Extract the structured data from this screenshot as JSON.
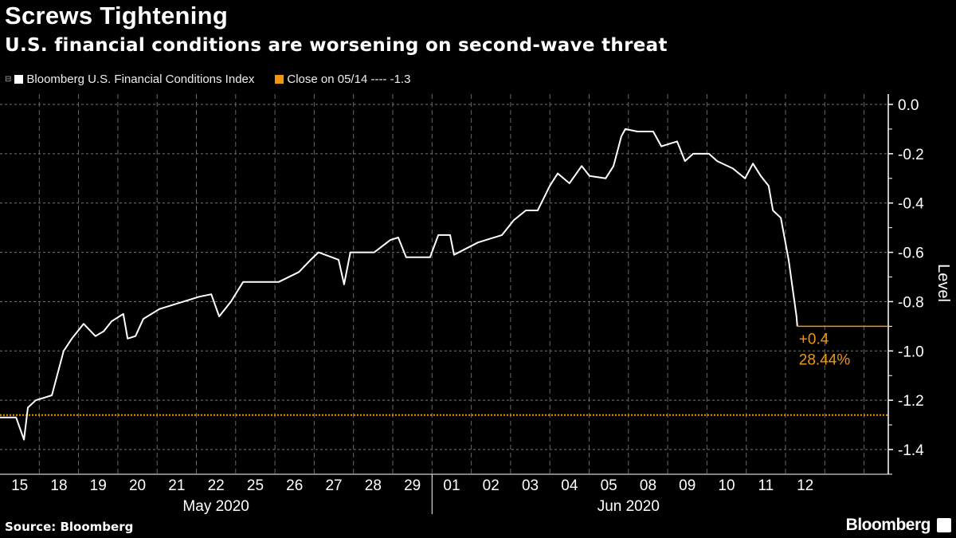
{
  "header": {
    "title": "Screws Tightening",
    "subtitle": "U.S. financial conditions are worsening on second-wave threat"
  },
  "legend": [
    {
      "label": "Bloomberg U.S. Financial Conditions Index",
      "color": "#ffffff"
    },
    {
      "label": "Close on 05/14 ---- -1.3",
      "color": "#f0960f"
    }
  ],
  "footer": {
    "source": "Source: Bloomberg",
    "brand": "Bloomberg"
  },
  "chart_data": {
    "type": "line",
    "title": "Screws Tightening",
    "subtitle": "U.S. financial conditions are worsening on second-wave threat",
    "ylabel": "Level",
    "xlabel": "",
    "ylim": [
      -1.5,
      0.05
    ],
    "xlim": [
      0,
      22.6
    ],
    "yticks": [
      0.0,
      -0.2,
      -0.4,
      -0.6,
      -0.8,
      -1.0,
      -1.2,
      -1.4
    ],
    "ytick_labels": [
      "0.0",
      "-0.2",
      "-0.4",
      "-0.6",
      "-0.8",
      "-1.0",
      "-1.2",
      "-1.4"
    ],
    "xtick_labels": [
      "15",
      "18",
      "19",
      "20",
      "21",
      "22",
      "25",
      "26",
      "27",
      "28",
      "29",
      "01",
      "02",
      "03",
      "04",
      "05",
      "08",
      "09",
      "10",
      "11",
      "12"
    ],
    "month_labels": [
      {
        "label": "May 2020",
        "center_day": 5.5
      },
      {
        "label": "Jun 2020",
        "center_day": 16
      }
    ],
    "month_divider_day": 11,
    "grid": true,
    "legend_position": "top-left",
    "series": [
      {
        "name": "Bloomberg U.S. Financial Conditions Index",
        "color": "#ffffff",
        "x": [
          0,
          0.41,
          0.61,
          0.71,
          0.91,
          1.32,
          1.62,
          1.83,
          2.13,
          2.43,
          2.64,
          2.84,
          3.14,
          3.25,
          3.45,
          3.65,
          4.06,
          4.67,
          5.07,
          5.38,
          5.58,
          5.88,
          6.19,
          7.1,
          7.61,
          7.91,
          8.11,
          8.62,
          8.76,
          8.92,
          9.53,
          9.94,
          10.14,
          10.34,
          10.95,
          11.16,
          11.46,
          11.56,
          12.17,
          12.78,
          13.08,
          13.39,
          13.69,
          14.0,
          14.2,
          14.5,
          14.81,
          15.01,
          15.42,
          15.62,
          15.82,
          15.92,
          16.23,
          16.63,
          16.84,
          17.24,
          17.44,
          17.65,
          18.05,
          18.26,
          18.66,
          18.97,
          19.17,
          19.37,
          19.57,
          19.68,
          19.88,
          20.08,
          20.28,
          20.3
        ],
        "y": [
          -1.27,
          -1.27,
          -1.36,
          -1.23,
          -1.2,
          -1.18,
          -1.0,
          -0.95,
          -0.89,
          -0.94,
          -0.92,
          -0.88,
          -0.85,
          -0.95,
          -0.94,
          -0.87,
          -0.83,
          -0.8,
          -0.78,
          -0.77,
          -0.86,
          -0.8,
          -0.72,
          -0.72,
          -0.68,
          -0.63,
          -0.6,
          -0.63,
          -0.73,
          -0.6,
          -0.6,
          -0.55,
          -0.54,
          -0.62,
          -0.62,
          -0.53,
          -0.53,
          -0.61,
          -0.56,
          -0.53,
          -0.47,
          -0.43,
          -0.43,
          -0.33,
          -0.28,
          -0.32,
          -0.25,
          -0.29,
          -0.3,
          -0.25,
          -0.13,
          -0.1,
          -0.11,
          -0.11,
          -0.17,
          -0.15,
          -0.23,
          -0.2,
          -0.2,
          -0.23,
          -0.26,
          -0.3,
          -0.24,
          -0.29,
          -0.33,
          -0.43,
          -0.46,
          -0.63,
          -0.86,
          -0.9
        ]
      },
      {
        "name": "Close on 05/14",
        "color": "#f0960f",
        "value": -1.26,
        "style": "dotted"
      }
    ],
    "annotations": [
      {
        "text": "+0.4",
        "color": "#f0960f"
      },
      {
        "text": "28.44%",
        "color": "#f0960f"
      }
    ],
    "last_value": -0.9
  }
}
